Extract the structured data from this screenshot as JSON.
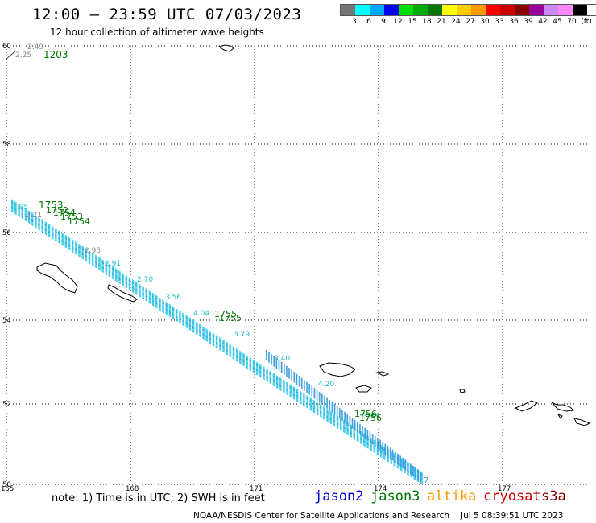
{
  "header": {
    "title": "12:00 — 23:59 UTC 07/03/2023",
    "subtitle": "12 hour collection of altimeter wave heights"
  },
  "legend": {
    "colors": [
      "#777777",
      "#00ffff",
      "#00aaff",
      "#0000ee",
      "#00dd00",
      "#00aa00",
      "#007700",
      "#ffff00",
      "#ffcc00",
      "#ff9900",
      "#ff0000",
      "#cc0000",
      "#880000",
      "#990099",
      "#cc88ff",
      "#ff88ff",
      "#000000"
    ],
    "labels": [
      "3",
      "6",
      "9",
      "12",
      "15",
      "18",
      "21",
      "24",
      "27",
      "30",
      "33",
      "36",
      "39",
      "42",
      "45",
      "70",
      "(ft)"
    ]
  },
  "axes": {
    "lat_labels": [
      "60",
      "58",
      "56",
      "54",
      "52",
      "50"
    ],
    "lon_labels": [
      "165",
      "168",
      "171",
      "174",
      "177"
    ]
  },
  "track_labels": {
    "top_left_swh": [
      "2.49",
      "2.25"
    ],
    "top_left_time": "1203",
    "cluster_a_times": [
      "1753",
      "1752",
      "1754",
      "1753",
      "1754"
    ],
    "cluster_a_swh": [
      "3.95",
      "3.21",
      "2.95"
    ],
    "track_swh": [
      "2.91",
      "2.70",
      "3.56",
      "4.04",
      "3.79",
      "3.40",
      "4.20",
      "3.88"
    ],
    "cluster_b_times": [
      "1755",
      "1755"
    ],
    "cluster_c_times": [
      "1756",
      "1756"
    ],
    "end_time": "7"
  },
  "footer": {
    "note": "note:  1) Time is in UTC;  2) SWH is in feet",
    "satellites": [
      {
        "name": "jason2",
        "color": "#0000dd"
      },
      {
        "name": "jason3",
        "color": "#007700"
      },
      {
        "name": "altika",
        "color": "#ff9900"
      },
      {
        "name": "cryosat",
        "color": "#cc0000"
      },
      {
        "name": "s3a",
        "color": "#880000"
      }
    ],
    "credit": "NOAA/NESDIS Center for Satellite Applications and Research",
    "timestamp": "Jul  5 08:39:51 UTC 2023"
  }
}
